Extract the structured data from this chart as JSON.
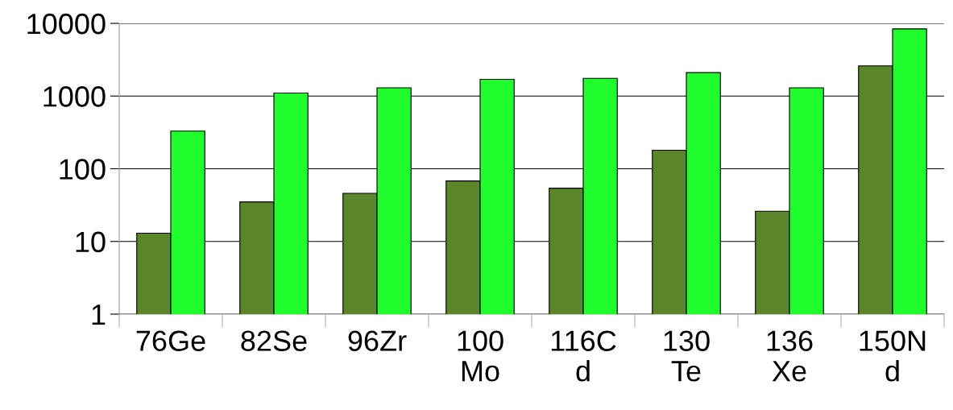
{
  "chart_data": {
    "type": "bar",
    "categories": [
      "76Ge",
      "82Se",
      "96Zr",
      "100\nMo",
      "116C\nd",
      "130\nTe",
      "136\nXe",
      "150N\nd"
    ],
    "series": [
      {
        "color": "#5b862a",
        "values": [
          13,
          35,
          46,
          68,
          54,
          180,
          26,
          2600
        ]
      },
      {
        "color": "#1eff2c",
        "values": [
          330,
          1100,
          1300,
          1700,
          1750,
          2100,
          1300,
          8400
        ]
      }
    ],
    "log": true,
    "ylim": [
      1,
      10000
    ],
    "yticks": [
      1,
      10,
      100,
      1000,
      10000
    ],
    "grid": "y",
    "legend": false
  }
}
